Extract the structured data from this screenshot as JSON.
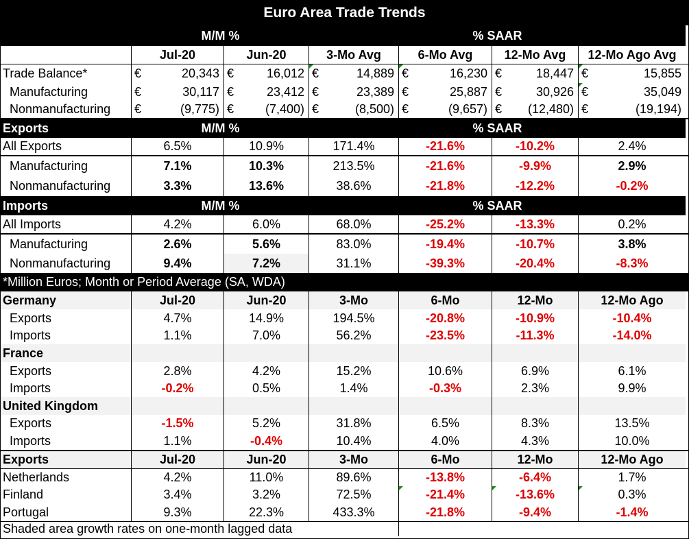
{
  "title": "Euro Area Trade Trends",
  "hdr_mm": "M/M %",
  "hdr_saar": "% SAAR",
  "cols": [
    "Jul-20",
    "Jun-20",
    "3-Mo Avg",
    "6-Mo Avg",
    "12-Mo Avg",
    "12-Mo Ago Avg"
  ],
  "currency": "€",
  "balance": [
    {
      "label": "Trade Balance*",
      "v": [
        "20,343",
        "16,012",
        "14,889",
        "16,230",
        "18,447",
        "15,855"
      ]
    },
    {
      "label": "Manufacturing",
      "v": [
        "30,117",
        "23,412",
        "23,389",
        "25,887",
        "30,926",
        "35,049"
      ]
    },
    {
      "label": "Nonmanufacturing",
      "v": [
        "(9,775)",
        "(7,400)",
        "(8,500)",
        "(9,657)",
        "(12,480)",
        "(19,194)"
      ]
    }
  ],
  "exports": {
    "section": "Exports",
    "rows": [
      {
        "label": "All Exports",
        "v": [
          "6.5%",
          "10.9%",
          "171.4%",
          "-21.6%",
          "-10.2%",
          "2.4%"
        ]
      },
      {
        "label": "Manufacturing",
        "v": [
          "7.1%",
          "10.3%",
          "213.5%",
          "-21.6%",
          "-9.9%",
          "2.9%"
        ]
      },
      {
        "label": "Nonmanufacturing",
        "v": [
          "3.3%",
          "13.6%",
          "38.6%",
          "-21.8%",
          "-12.2%",
          "-0.2%"
        ]
      }
    ]
  },
  "imports": {
    "section": "Imports",
    "rows": [
      {
        "label": "All Imports",
        "v": [
          "4.2%",
          "6.0%",
          "68.0%",
          "-25.2%",
          "-13.3%",
          "0.2%"
        ]
      },
      {
        "label": "Manufacturing",
        "v": [
          "2.6%",
          "5.6%",
          "83.0%",
          "-19.4%",
          "-10.7%",
          "3.8%"
        ]
      },
      {
        "label": "Nonmanufacturing",
        "v": [
          "9.4%",
          "7.2%",
          "31.1%",
          "-39.3%",
          "-20.4%",
          "-8.3%"
        ]
      }
    ]
  },
  "note": "*Million Euros; Month or Period Average (SA, WDA)",
  "country_cols": [
    "Jul-20",
    "Jun-20",
    "3-Mo",
    "6-Mo",
    "12-Mo",
    "12-Mo Ago"
  ],
  "countries": [
    {
      "name": "Germany",
      "rows": [
        {
          "label": "Exports",
          "v": [
            "4.7%",
            "14.9%",
            "194.5%",
            "-20.8%",
            "-10.9%",
            "-10.4%"
          ]
        },
        {
          "label": "Imports",
          "v": [
            "1.1%",
            "7.0%",
            "56.2%",
            "-23.5%",
            "-11.3%",
            "-14.0%"
          ]
        }
      ]
    },
    {
      "name": "France",
      "rows": [
        {
          "label": "Exports",
          "v": [
            "2.8%",
            "4.2%",
            "15.2%",
            "10.6%",
            "6.9%",
            "6.1%"
          ]
        },
        {
          "label": "Imports",
          "v": [
            "-0.2%",
            "0.5%",
            "1.4%",
            "-0.3%",
            "2.3%",
            "9.9%"
          ]
        }
      ]
    },
    {
      "name": "United Kingdom",
      "rows": [
        {
          "label": "Exports",
          "v": [
            "-1.5%",
            "5.2%",
            "31.8%",
            "6.5%",
            "8.3%",
            "13.5%"
          ]
        },
        {
          "label": "Imports",
          "v": [
            "1.1%",
            "-0.4%",
            "10.4%",
            "4.0%",
            "4.3%",
            "10.0%"
          ]
        }
      ]
    }
  ],
  "exports2": {
    "section": "Exports",
    "rows": [
      {
        "label": "Netherlands",
        "v": [
          "4.2%",
          "11.0%",
          "89.6%",
          "-13.8%",
          "-6.4%",
          "1.7%"
        ]
      },
      {
        "label": "Finland",
        "v": [
          "3.4%",
          "3.2%",
          "72.5%",
          "-21.4%",
          "-13.6%",
          "0.3%"
        ]
      },
      {
        "label": "Portugal",
        "v": [
          "9.3%",
          "22.3%",
          "433.3%",
          "-21.8%",
          "-9.4%",
          "-1.4%"
        ]
      }
    ]
  },
  "footer": "Shaded area growth rates on one-month lagged data"
}
